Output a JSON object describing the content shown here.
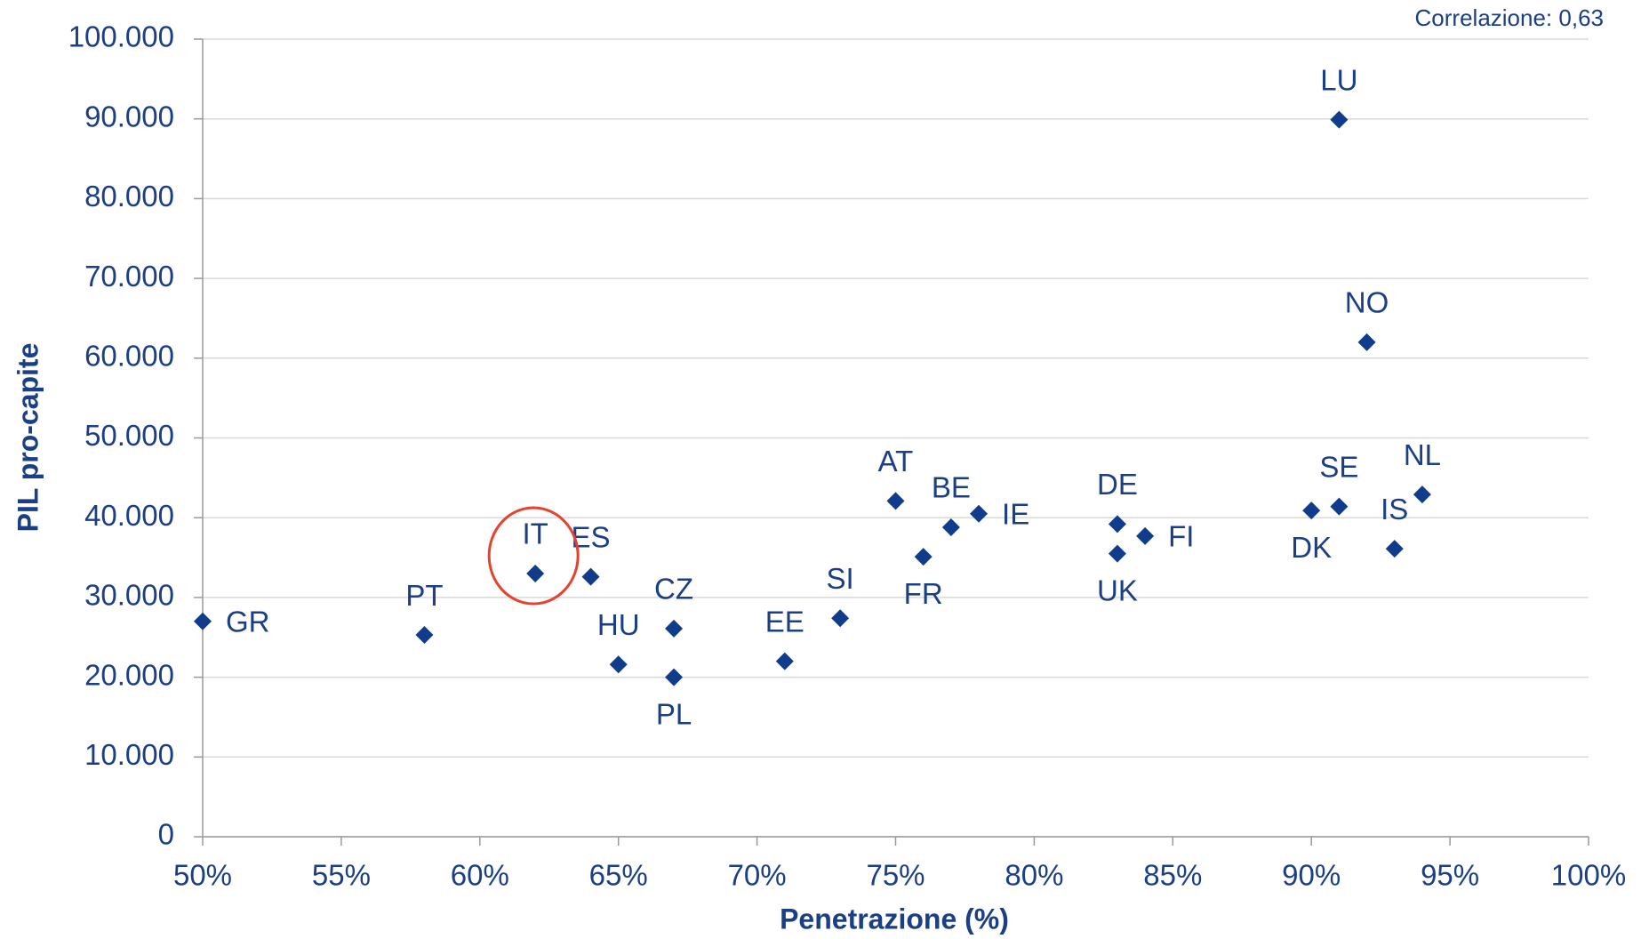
{
  "chart_data": {
    "type": "scatter",
    "annotation": "Correlazione: 0,63",
    "x_label": "Penetrazione (%)",
    "y_label": "PIL pro-capite",
    "color": "#0f3d8c",
    "grid": true,
    "point_labels": [
      "GR",
      "PT",
      "IT",
      "ES",
      "HU",
      "CZ",
      "PL",
      "EE",
      "SI",
      "AT",
      "FR",
      "BE",
      "IE",
      "DE",
      "UK",
      "FI",
      "DK",
      "SE",
      "LU",
      "NO",
      "IS",
      "NL"
    ],
    "x": [
      50,
      58,
      62,
      64,
      65,
      67,
      67,
      71,
      73,
      75,
      76,
      77,
      78,
      83,
      83,
      84,
      90,
      91,
      91,
      92,
      93,
      94
    ],
    "values": [
      27000,
      25300,
      33000,
      32600,
      21600,
      26100,
      20000,
      22000,
      27400,
      42100,
      35100,
      38800,
      40500,
      39200,
      35500,
      37700,
      40900,
      41400,
      89900,
      62000,
      36100,
      42900
    ],
    "xlim": [
      50,
      100
    ],
    "xticks": [
      {
        "value": 50,
        "label": "50%"
      },
      {
        "value": 55,
        "label": "55%"
      },
      {
        "value": 60,
        "label": "60%"
      },
      {
        "value": 65,
        "label": "65%"
      },
      {
        "value": 70,
        "label": "70%"
      },
      {
        "value": 75,
        "label": "75%"
      },
      {
        "value": 80,
        "label": "80%"
      },
      {
        "value": 85,
        "label": "85%"
      },
      {
        "value": 90,
        "label": "90%"
      },
      {
        "value": 95,
        "label": "95%"
      },
      {
        "value": 100,
        "label": "100%"
      }
    ],
    "ylim": [
      0,
      100000
    ],
    "yticks": [
      0,
      {
        "value": 10000,
        "label": "10.000"
      },
      {
        "value": 20000,
        "label": "20.000"
      },
      {
        "value": 30000,
        "label": "30.000"
      },
      {
        "value": 40000,
        "label": "40.000"
      },
      {
        "value": 50000,
        "label": "50.000"
      },
      {
        "value": 60000,
        "label": "60.000"
      },
      {
        "value": 70000,
        "label": "70.000"
      },
      {
        "value": 80000,
        "label": "80.000"
      },
      {
        "value": 90000,
        "label": "90.000"
      },
      {
        "value": 100000,
        "label": "100.000"
      }
    ]
  }
}
